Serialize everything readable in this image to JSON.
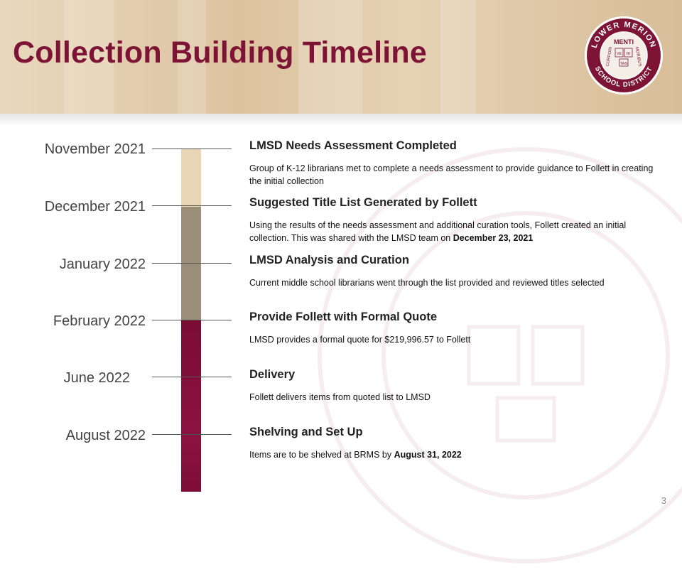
{
  "slide": {
    "title": "Collection Building Timeline",
    "page_number": "3"
  },
  "logo": {
    "ring_top": "LOWER MERION",
    "ring_bottom": "SCHOOL DISTRICT",
    "left": "CORPORI",
    "right": "MORIBUS",
    "center_top": "MENTI",
    "tablets": [
      "VE",
      "RI"
    ],
    "bottom": "TAS"
  },
  "colors": {
    "accent": "#7d1436",
    "header_band": "#dcc3a0",
    "segment_1": "#e8d5b3",
    "segment_2": "#9c8f7a",
    "segment_3": "#7a0c33"
  },
  "timeline": [
    {
      "date": "November 2021",
      "title": "LMSD Needs Assessment Completed",
      "desc": "Group of K-12 librarians met to complete a needs assessment to provide guidance to Follett in creating the initial collection",
      "desc_bold": ""
    },
    {
      "date": "December 2021",
      "title": "Suggested Title List Generated by Follett",
      "desc": "Using the results of the needs assessment and additional curation tools, Follett created an initial collection. This was shared with the LMSD team on ",
      "desc_bold": "December 23, 2021"
    },
    {
      "date": "January 2022",
      "title": "LMSD Analysis and Curation",
      "desc": "Current middle school librarians went through the list provided and reviewed titles selected",
      "desc_bold": ""
    },
    {
      "date": "February 2022",
      "title": "Provide Follett with Formal Quote",
      "desc": "LMSD provides a formal quote for $219,996.57 to Follett",
      "desc_bold": ""
    },
    {
      "date": "June 2022",
      "title": "Delivery",
      "desc": "Follett delivers items from quoted list to LMSD",
      "desc_bold": ""
    },
    {
      "date": "August 2022",
      "title": "Shelving and Set Up",
      "desc": "Items are to be shelved at BRMS  by ",
      "desc_bold": "August 31, 2022"
    }
  ]
}
